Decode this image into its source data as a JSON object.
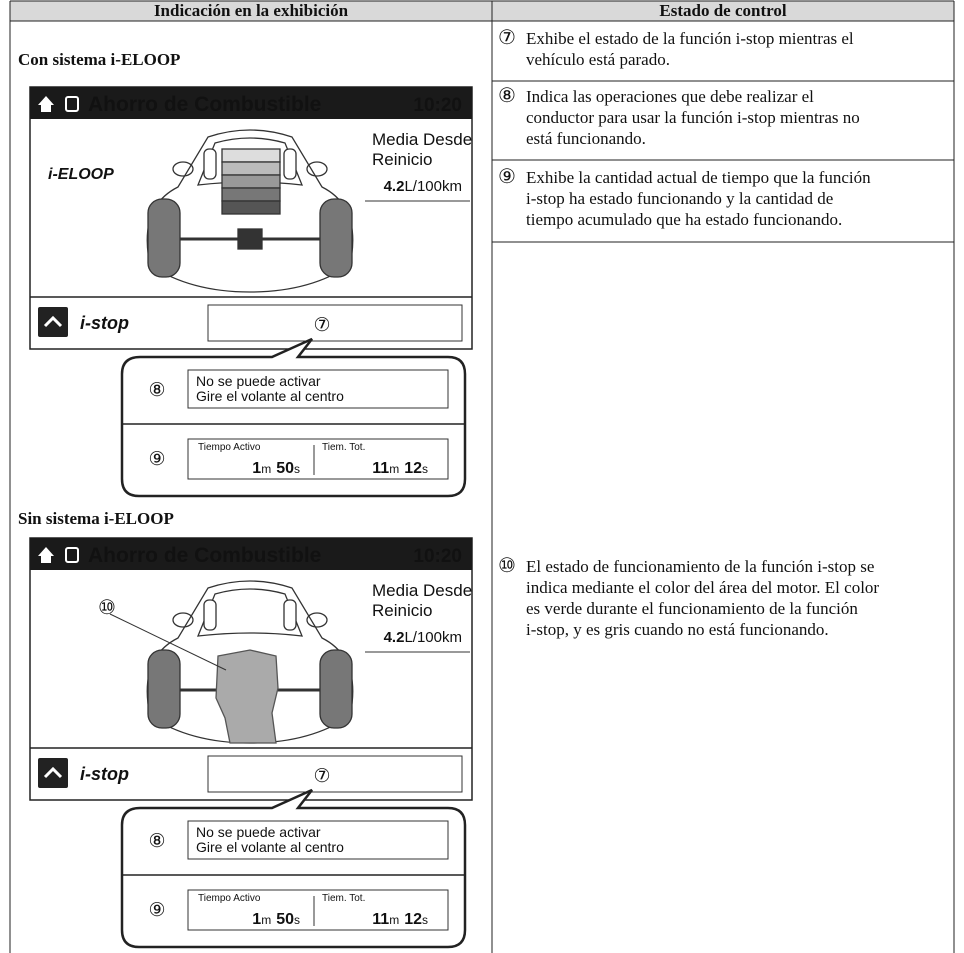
{
  "table": {
    "headers": [
      "Indicación en la exhibición",
      "Estado de control"
    ],
    "sections": [
      {
        "title": "Con sistema i-ELOOP",
        "screen": {
          "header": "Ahorro de Combustible",
          "time": "10:20",
          "avg_label": [
            "Media Desde",
            "Reinicio"
          ],
          "avg_value": "4.2",
          "avg_unit": "L/100km",
          "system": "i-ELOOP",
          "istop": "i-stop",
          "marker": "⑦"
        },
        "callout": {
          "message_marker": "⑧",
          "message": [
            "No se puede activar",
            "Gire el volante al centro"
          ],
          "time_marker": "⑨",
          "active_label": "Tiempo Activo",
          "active_min": "1",
          "active_min_unit": "m",
          "active_sec": "50",
          "active_sec_unit": "s",
          "total_label": "Tiem. Tot.",
          "total_min": "11",
          "total_min_unit": "m",
          "total_sec": "12",
          "total_sec_unit": "s"
        }
      },
      {
        "title": "Sin sistema i-ELOOP",
        "screen": {
          "header": "Ahorro de Combustible",
          "time": "10:20",
          "avg_label": [
            "Media Desde",
            "Reinicio"
          ],
          "avg_value": "4.2",
          "avg_unit": "L/100km",
          "engine_marker": "⑩",
          "istop": "i-stop",
          "marker": "⑦"
        },
        "callout": {
          "message_marker": "⑧",
          "message": [
            "No se puede activar",
            "Gire el volante al centro"
          ],
          "time_marker": "⑨",
          "active_label": "Tiempo Activo",
          "active_min": "1",
          "active_min_unit": "m",
          "active_sec": "50",
          "active_sec_unit": "s",
          "total_label": "Tiem. Tot.",
          "total_min": "11",
          "total_min_unit": "m",
          "total_sec": "12",
          "total_sec_unit": "s"
        }
      }
    ],
    "states": [
      {
        "marker": "⑦",
        "lines": [
          "Exhibe el estado de la función i-stop mientras el",
          "vehículo está parado."
        ]
      },
      {
        "marker": "⑧",
        "lines": [
          "Indica las operaciones que debe realizar el",
          "conductor para usar la función i-stop mientras no",
          "está funcionando."
        ]
      },
      {
        "marker": "⑨",
        "lines": [
          "Exhibe la cantidad actual de tiempo que la función",
          "i-stop ha estado funcionando y la cantidad de",
          "tiempo acumulado que ha estado funcionando."
        ]
      },
      {
        "marker": "⑩",
        "lines": [
          "El estado de funcionamiento de la función i-stop se",
          "indica mediante el color del área del motor. El color",
          "es verde durante el funcionamiento de la función",
          "i-stop, y es gris cuando no está funcionando."
        ]
      }
    ]
  }
}
